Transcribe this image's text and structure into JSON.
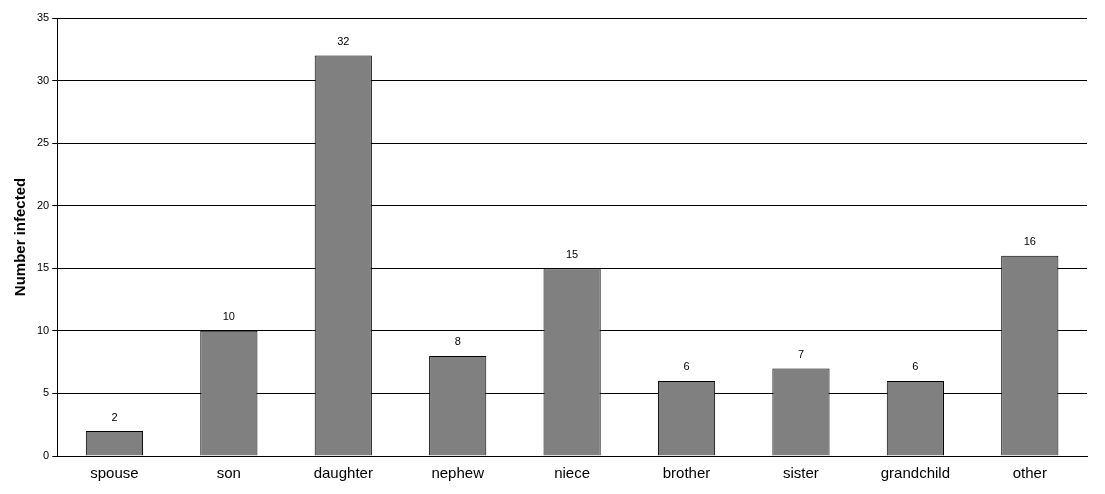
{
  "chart_data": {
    "type": "bar",
    "ylabel": "Number infected",
    "categories": [
      "spouse",
      "son",
      "daughter",
      "nephew",
      "niece",
      "brother",
      "sister",
      "grandchild",
      "other"
    ],
    "values": [
      2,
      10,
      32,
      8,
      15,
      6,
      7,
      6,
      16
    ],
    "color": "#808080",
    "ylim": [
      0,
      35
    ],
    "yticks": [
      0,
      5,
      10,
      15,
      20,
      25,
      30,
      35
    ],
    "grid": "y",
    "data_labels": true,
    "legend": false
  }
}
